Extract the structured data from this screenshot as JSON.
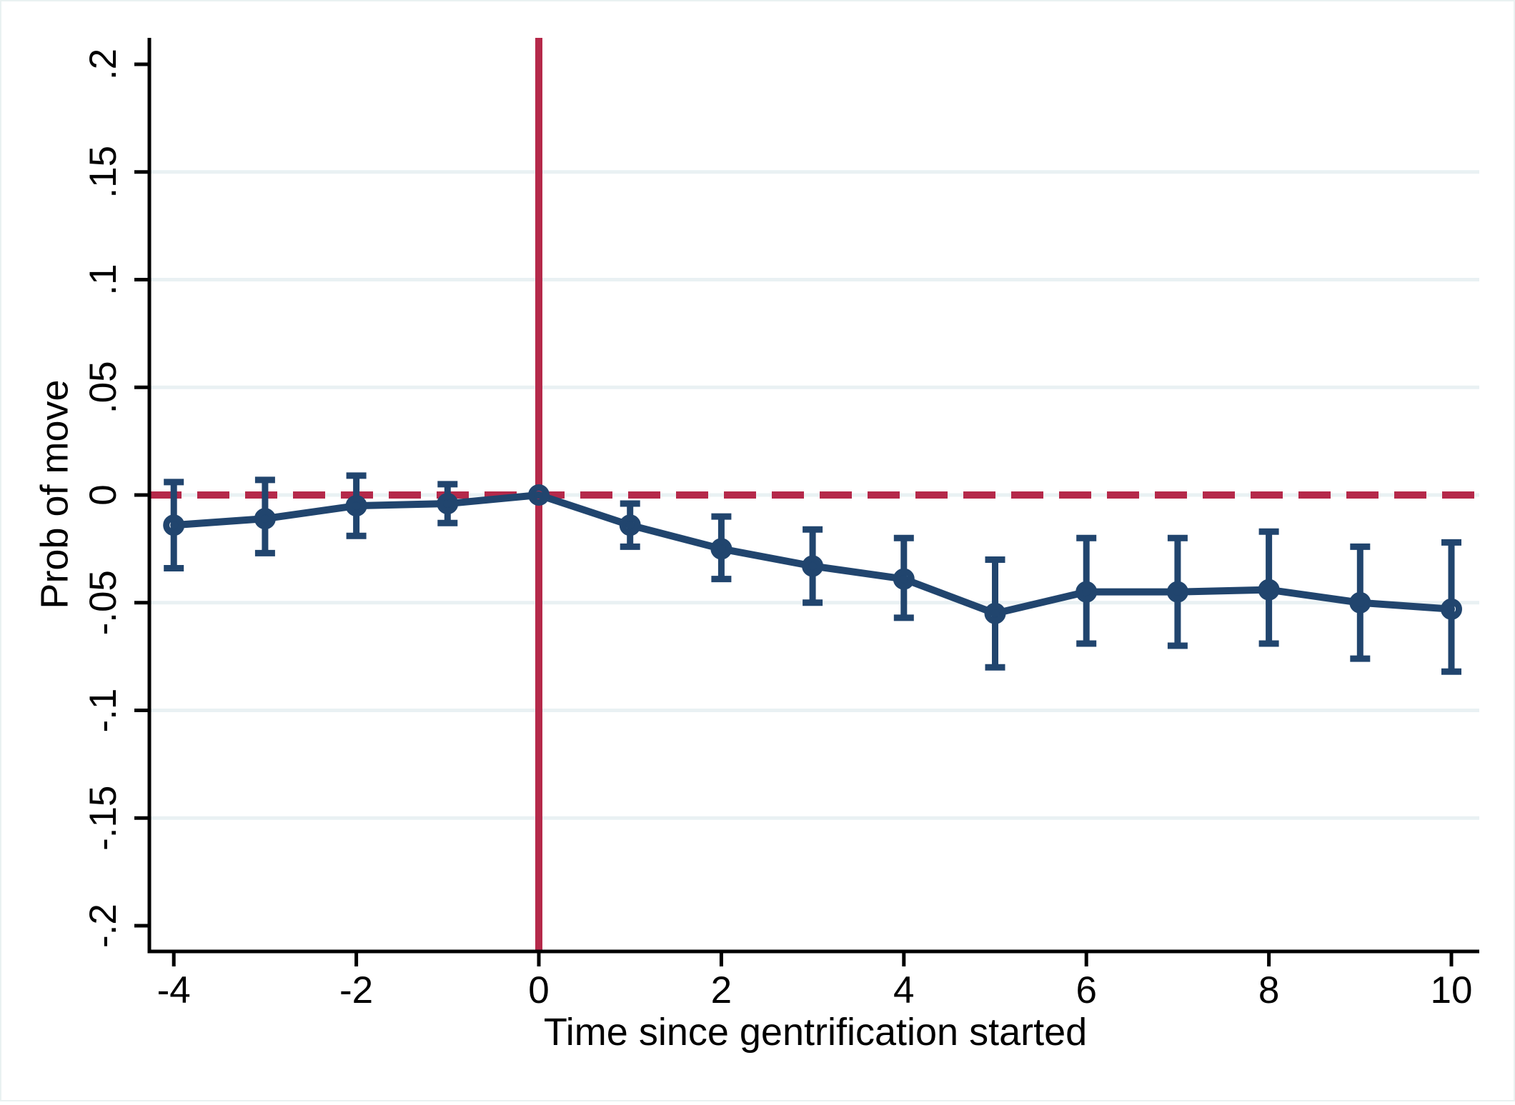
{
  "chart_data": {
    "type": "line",
    "subtype": "event-study coefficient plot with 95% confidence intervals",
    "title": "",
    "xlabel": "Time since gentrification started",
    "ylabel": "Prob of move",
    "xlim": [
      -4.3,
      10.3
    ],
    "ylim": [
      -0.212,
      0.212
    ],
    "grid": "horizontal-light",
    "legend_position": "none",
    "xticks": [
      {
        "value": -4,
        "label": "-4"
      },
      {
        "value": -2,
        "label": "-2"
      },
      {
        "value": 0,
        "label": "0"
      },
      {
        "value": 2,
        "label": "2"
      },
      {
        "value": 4,
        "label": "4"
      },
      {
        "value": 6,
        "label": "6"
      },
      {
        "value": 8,
        "label": "8"
      },
      {
        "value": 10,
        "label": "10"
      }
    ],
    "yticks": [
      {
        "value": 0.2,
        "label": ".2",
        "grid": false
      },
      {
        "value": 0.15,
        "label": ".15",
        "grid": true
      },
      {
        "value": 0.1,
        "label": ".1",
        "grid": true
      },
      {
        "value": 0.05,
        "label": ".05",
        "grid": true
      },
      {
        "value": 0,
        "label": "0",
        "grid": true
      },
      {
        "value": -0.05,
        "label": "-.05",
        "grid": true
      },
      {
        "value": -0.1,
        "label": "-.1",
        "grid": true
      },
      {
        "value": -0.15,
        "label": "-.15",
        "grid": true
      },
      {
        "value": -0.2,
        "label": "-.2",
        "grid": false
      }
    ],
    "reference_lines": {
      "vertical": {
        "x": 0,
        "style": "solid"
      },
      "horizontal": {
        "y": 0,
        "style": "dashed"
      }
    },
    "series": [
      {
        "name": "estimate",
        "marker": "hollow-circle",
        "points": [
          {
            "t": -4,
            "estimate": -0.014,
            "ci_low": -0.034,
            "ci_high": 0.006
          },
          {
            "t": -3,
            "estimate": -0.011,
            "ci_low": -0.027,
            "ci_high": 0.007
          },
          {
            "t": -2,
            "estimate": -0.005,
            "ci_low": -0.019,
            "ci_high": 0.009
          },
          {
            "t": -1,
            "estimate": -0.004,
            "ci_low": -0.013,
            "ci_high": 0.005
          },
          {
            "t": 0,
            "estimate": 0.0,
            "ci_low": null,
            "ci_high": null
          },
          {
            "t": 1,
            "estimate": -0.014,
            "ci_low": -0.024,
            "ci_high": -0.004
          },
          {
            "t": 2,
            "estimate": -0.025,
            "ci_low": -0.039,
            "ci_high": -0.01
          },
          {
            "t": 3,
            "estimate": -0.033,
            "ci_low": -0.05,
            "ci_high": -0.016
          },
          {
            "t": 4,
            "estimate": -0.039,
            "ci_low": -0.057,
            "ci_high": -0.02
          },
          {
            "t": 5,
            "estimate": -0.055,
            "ci_low": -0.08,
            "ci_high": -0.03
          },
          {
            "t": 6,
            "estimate": -0.045,
            "ci_low": -0.069,
            "ci_high": -0.02
          },
          {
            "t": 7,
            "estimate": -0.045,
            "ci_low": -0.07,
            "ci_high": -0.02
          },
          {
            "t": 8,
            "estimate": -0.044,
            "ci_low": -0.069,
            "ci_high": -0.017
          },
          {
            "t": 9,
            "estimate": -0.05,
            "ci_low": -0.076,
            "ci_high": -0.024
          },
          {
            "t": 10,
            "estimate": -0.053,
            "ci_low": -0.082,
            "ci_high": -0.022
          }
        ]
      }
    ],
    "colors": {
      "series": "#21456e",
      "reference": "#b5294a",
      "gridline": "#e9f1f3",
      "axis": "#000000",
      "background": "#ffffff"
    }
  }
}
